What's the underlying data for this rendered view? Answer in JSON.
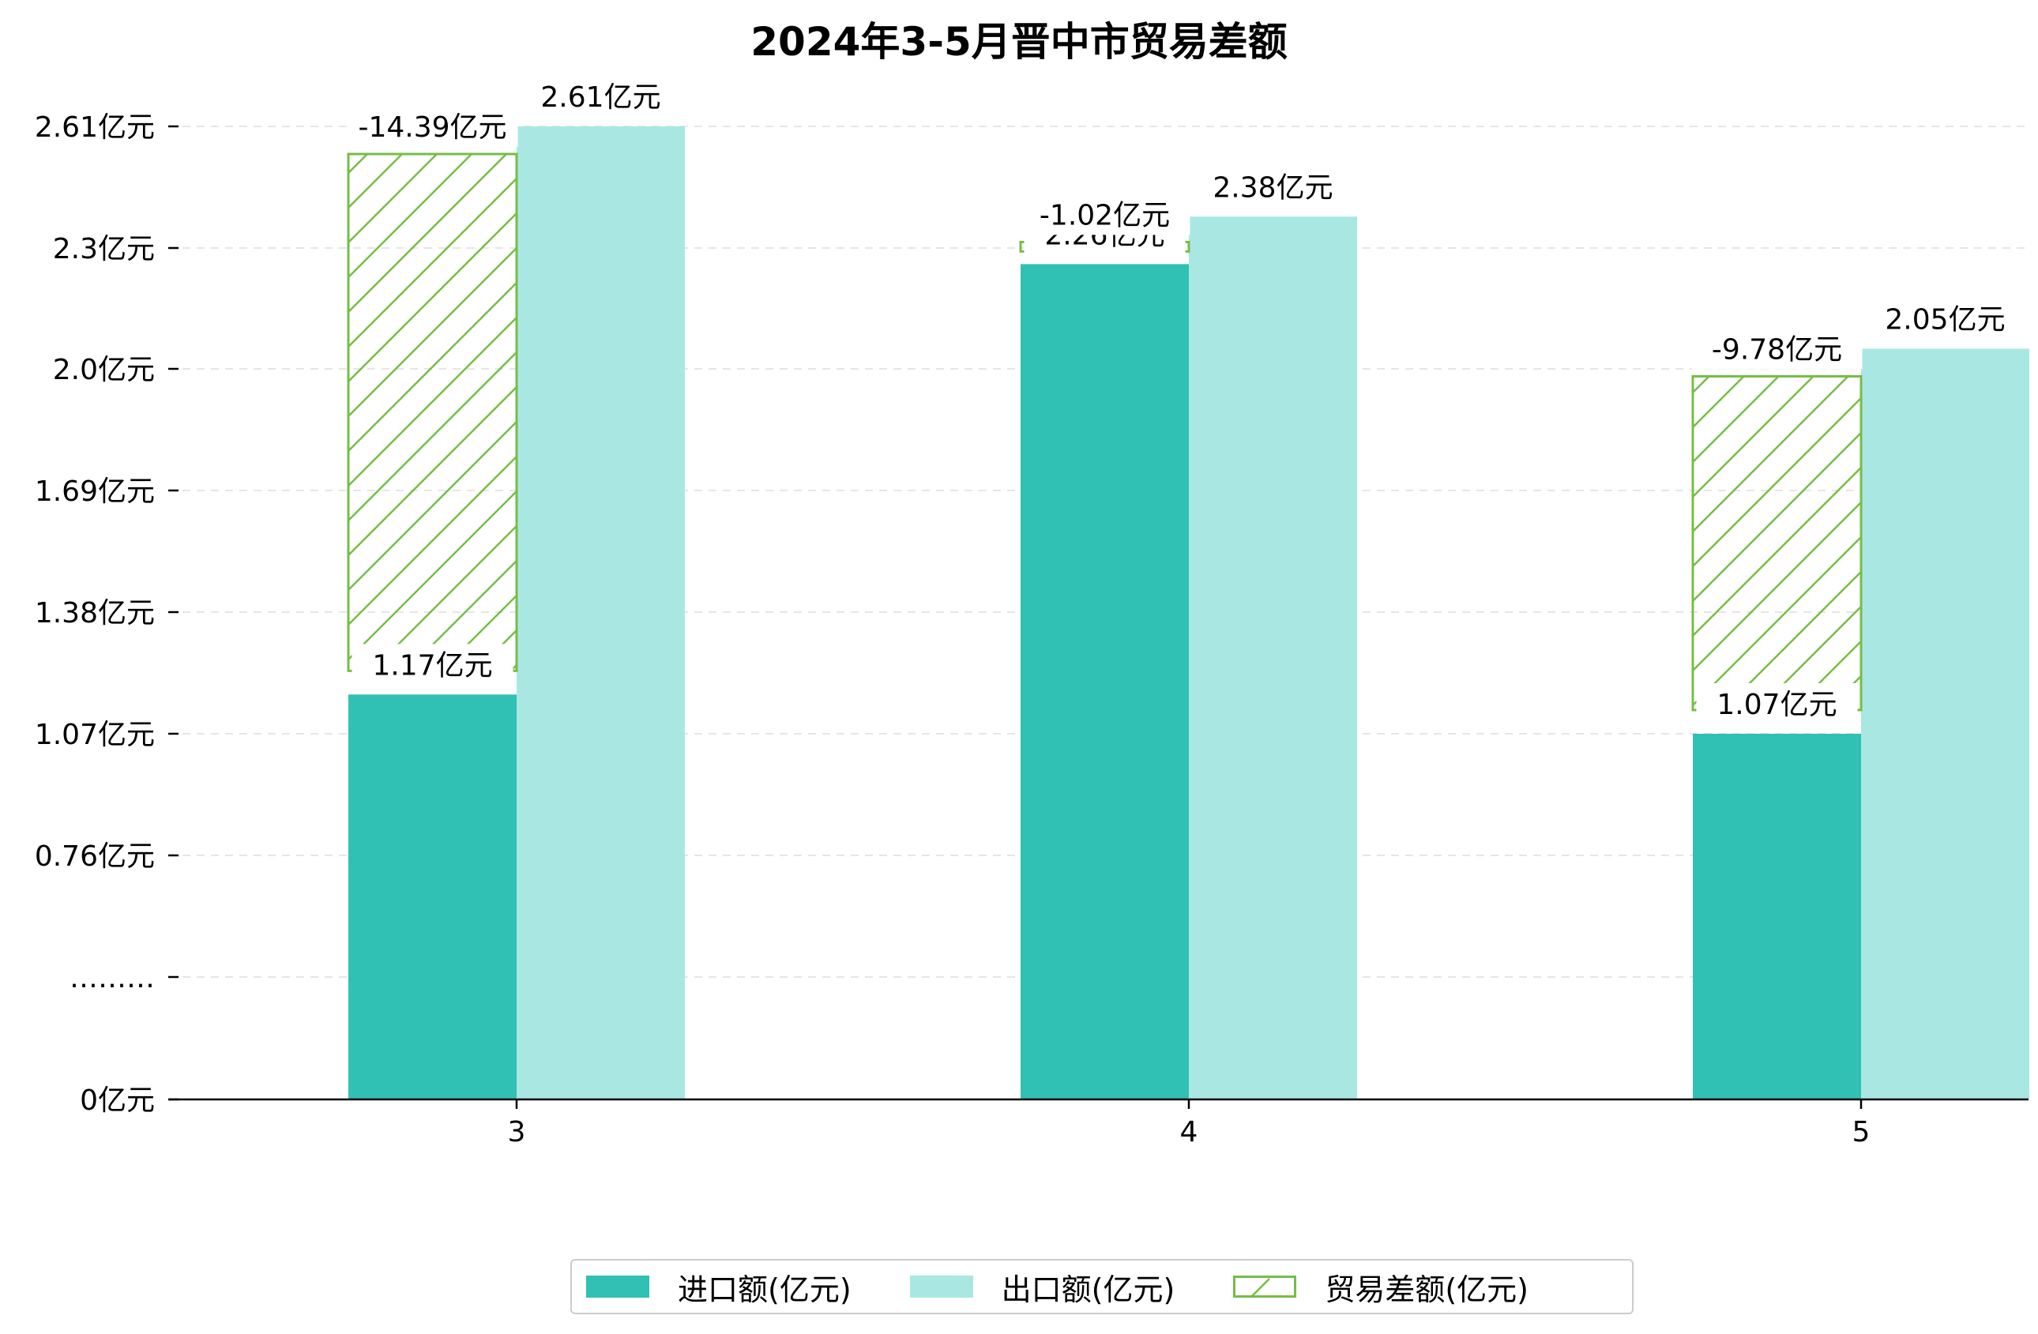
{
  "chart_data": {
    "type": "bar",
    "title": "2024年3-5月晋中市贸易差额",
    "xlabel": "",
    "ylabel": "",
    "categories": [
      "3",
      "4",
      "5"
    ],
    "y_tick_labels": [
      "0亿元",
      "………",
      "0.76亿元",
      "1.07亿元",
      "1.38亿元",
      "1.69亿元",
      "2.0亿元",
      "2.3亿元",
      "2.61亿元"
    ],
    "grid": true,
    "legend_position": "bottom-center",
    "series": [
      {
        "name": "进口额(亿元)",
        "color": "#31c0b4",
        "values": [
          1.17,
          2.26,
          1.07
        ],
        "labels": [
          "1.17亿元",
          "2.26亿元",
          "1.07亿元"
        ]
      },
      {
        "name": "出口额(亿元)",
        "color": "#a9e8e2",
        "values": [
          2.61,
          2.38,
          2.05
        ],
        "labels": [
          "2.61亿元",
          "2.38亿元",
          "2.05亿元"
        ]
      },
      {
        "name": "贸易差额(亿元)",
        "color": "#77bd45",
        "pattern": "hatch",
        "values": [
          -14.39,
          -1.02,
          -9.78
        ],
        "labels": [
          "-14.39亿元",
          "-1.02亿元",
          "-9.78亿元"
        ]
      }
    ]
  }
}
